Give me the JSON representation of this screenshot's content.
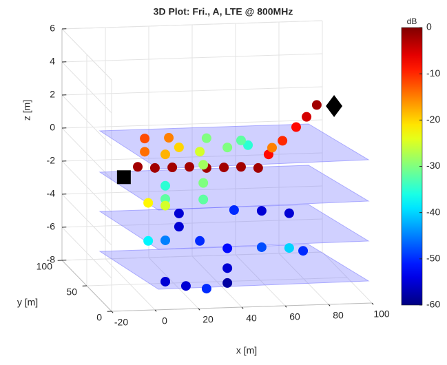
{
  "chart_data": {
    "type": "scatter3d",
    "title": "3D Plot: Fri., A, LTE @ 800MHz",
    "xlabel": "x [m]",
    "ylabel": "y [m]",
    "zlabel": "z [m]",
    "xlim": [
      -20,
      100
    ],
    "ylim": [
      0,
      100
    ],
    "zlim": [
      -8,
      6
    ],
    "xticks": [
      -20,
      0,
      20,
      40,
      60,
      80,
      100
    ],
    "yticks": [
      0,
      50,
      100
    ],
    "zticks": [
      -8,
      -6,
      -4,
      -2,
      0,
      2,
      4,
      6
    ],
    "grid": true,
    "x": [
      3.5,
      11.4,
      19.4,
      27.3,
      35.2,
      43.2,
      51.1,
      59.0,
      63.8,
      70.2,
      76.5,
      81.3,
      86.0,
      6.7,
      17.8,
      6.7,
      16.2,
      22.5,
      32.1,
      44.8,
      54.3,
      35.2,
      51.1,
      65.4,
      33.7,
      33.7,
      33.7,
      16.2,
      16.2,
      8.3,
      16.2,
      22.5,
      22.5,
      16.2,
      8.3,
      32.1,
      44.8,
      60.6,
      73.3,
      79.7,
      47.9,
      60.6,
      73.3,
      44.8,
      44.8,
      16.2,
      25.7,
      35.2
    ],
    "y": [
      50,
      50,
      50,
      50,
      50,
      50,
      50,
      50,
      50,
      50,
      50,
      50,
      50,
      50,
      50,
      50,
      50,
      50,
      50,
      50,
      50,
      50,
      50,
      50,
      50,
      50,
      50,
      50,
      50,
      50,
      50,
      50,
      50,
      50,
      50,
      50,
      50,
      50,
      50,
      50,
      50,
      50,
      50,
      50,
      50,
      50,
      50,
      50
    ],
    "z": [
      -0.9,
      -1.0,
      -1.0,
      -1.0,
      -1.1,
      -1.1,
      -1.1,
      -1.2,
      -0.4,
      0.4,
      1.2,
      1.8,
      2.5,
      0.8,
      0.8,
      0.0,
      -0.2,
      0.2,
      -0.1,
      0.1,
      0.2,
      0.7,
      0.5,
      0.0,
      -0.9,
      -2.0,
      -3.0,
      -2.1,
      -2.9,
      -3.1,
      -3.3,
      -3.8,
      -4.6,
      -5.4,
      -5.4,
      -5.5,
      -6.0,
      -6.0,
      -6.1,
      -6.3,
      -3.7,
      -3.8,
      -4.0,
      -7.2,
      -8.1,
      -7.9,
      -8.2,
      -8.4
    ],
    "values": [
      -2,
      -2,
      -2,
      -2,
      -2,
      -2,
      -2,
      -2,
      -8,
      -10,
      -8,
      -5,
      -2,
      -12,
      -15,
      -14,
      -18,
      -20,
      -25,
      -30,
      -35,
      -30,
      -32,
      -15,
      -28,
      -30,
      -32,
      -35,
      -32,
      -22,
      -25,
      -55,
      -55,
      -45,
      -38,
      -50,
      -52,
      -48,
      -40,
      -50,
      -50,
      -55,
      -55,
      -55,
      -58,
      -55,
      -55,
      -50
    ],
    "markers": [
      {
        "shape": "square",
        "x": -2.9,
        "y": 50,
        "z": -1.5
      },
      {
        "shape": "diamond",
        "x": 94.0,
        "y": 50,
        "z": 2.4
      }
    ],
    "colorbar": {
      "label": "dB",
      "colormap": "jet",
      "clim": [
        -60,
        0
      ],
      "ticks": [
        0,
        -10,
        -20,
        -30,
        -40,
        -50,
        -60
      ]
    }
  }
}
